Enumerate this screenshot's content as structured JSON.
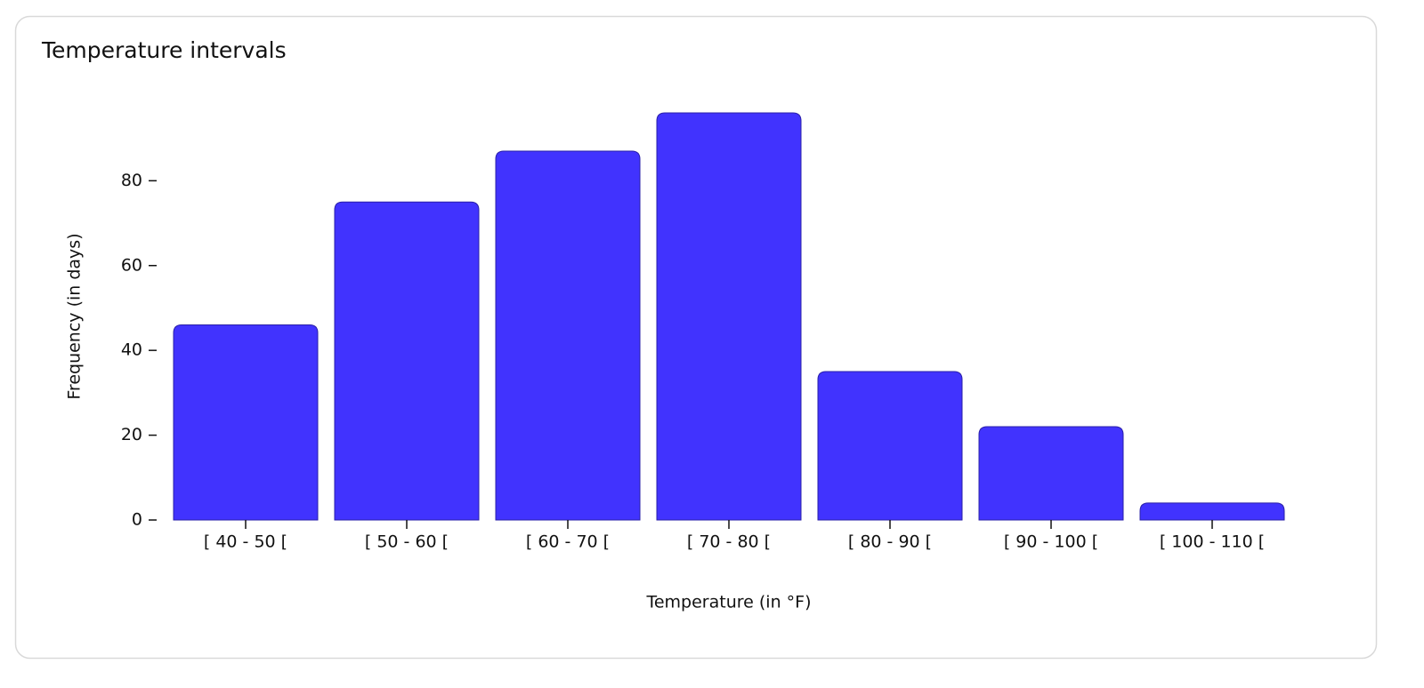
{
  "chart_data": {
    "type": "bar",
    "title": "Temperature intervals",
    "x_label": "Temperature (in °F)",
    "y_label": "Frequency (in days)",
    "categories": [
      "[ 40 - 50 [",
      "[ 50 - 60 [",
      "[ 60 - 70 [",
      "[ 70 - 80 [",
      "[ 80 - 90 [",
      "[ 90 - 100 [",
      "[ 100 - 110 ["
    ],
    "values": [
      46,
      75,
      87,
      96,
      35,
      22,
      4
    ],
    "color": "#4133fe",
    "ylim": [
      0,
      96
    ],
    "yticks": [
      0,
      20,
      40,
      60,
      80
    ]
  }
}
